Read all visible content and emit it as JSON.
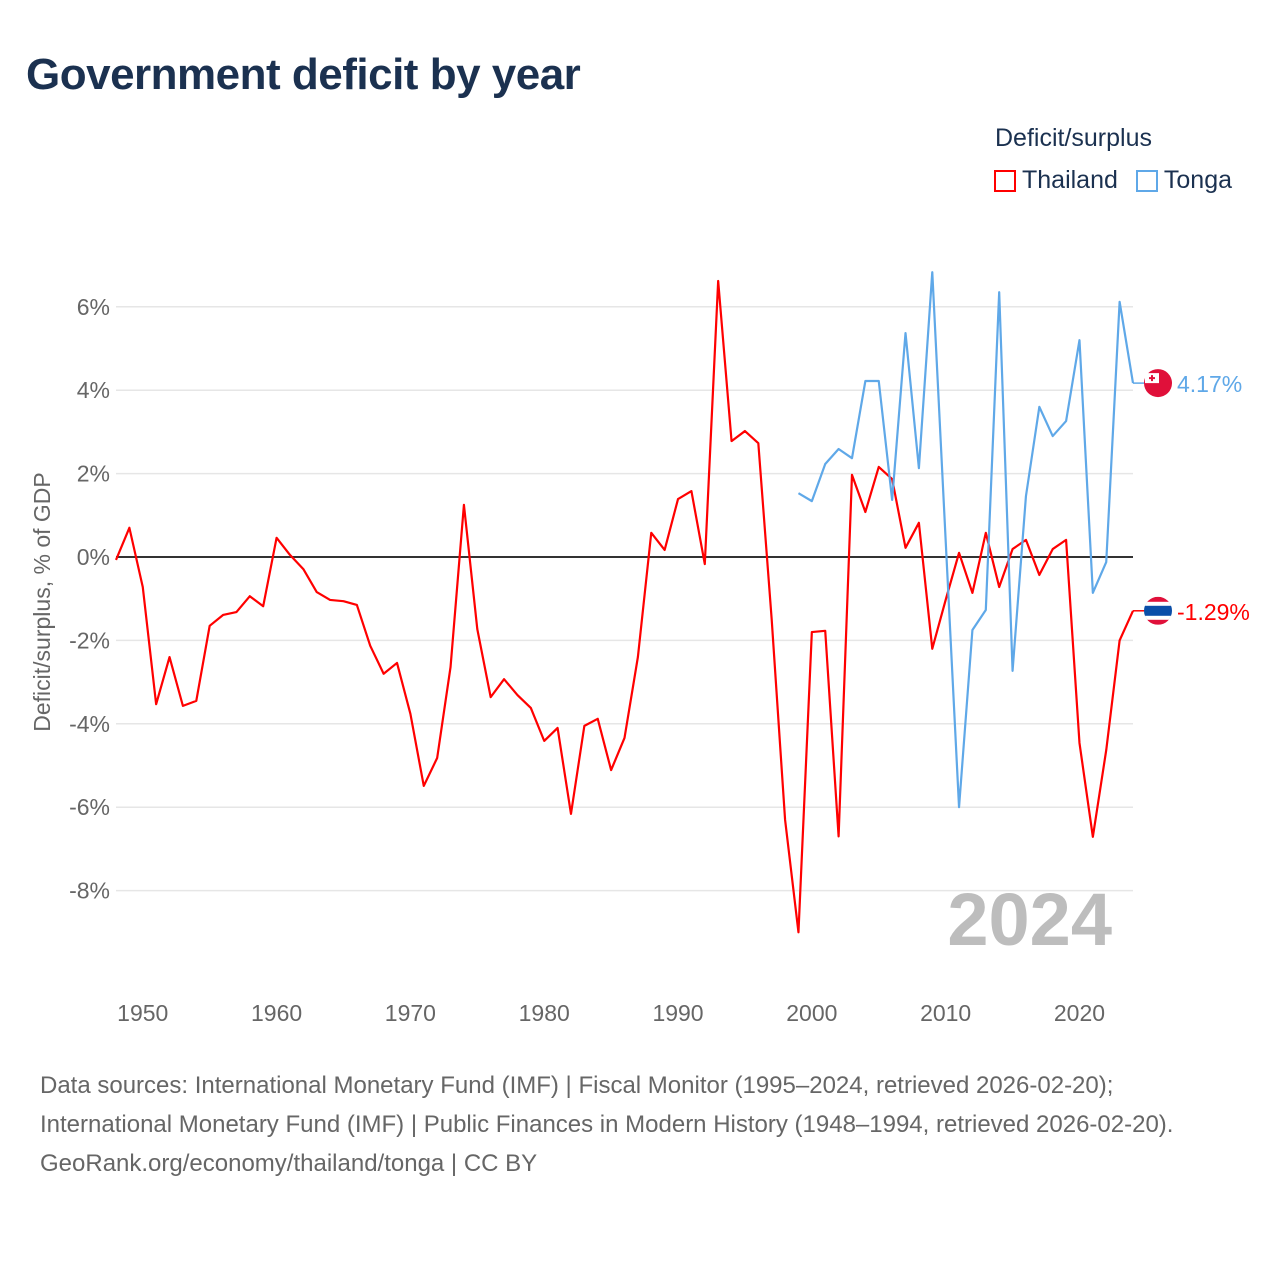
{
  "title": "Government deficit by year",
  "legend": {
    "title": "Deficit/surplus",
    "items": [
      {
        "label": "Thailand",
        "color": "#ff0000"
      },
      {
        "label": "Tonga",
        "color": "#5fa8e8"
      }
    ]
  },
  "footer": {
    "sources": "Data sources: International Monetary Fund (IMF) | Fiscal Monitor (1995–2024, retrieved 2026-02-20); International Monetary Fund (IMF) | Public Finances in Modern History (1948–1994, retrieved 2026-02-20).",
    "credit": "GeoRank.org/economy/thailand/tonga | CC BY"
  },
  "chart_data": {
    "type": "line",
    "title": "Government deficit by year",
    "xlabel": "",
    "ylabel": "Deficit/surplus, % of GDP",
    "xlim": [
      1948,
      2024
    ],
    "ylim": [
      -10,
      7
    ],
    "x_ticks": [
      1950,
      1960,
      1970,
      1980,
      1990,
      2000,
      2010,
      2020
    ],
    "y_ticks": [
      {
        "v": 6,
        "label": "6%"
      },
      {
        "v": 4,
        "label": "4%"
      },
      {
        "v": 2,
        "label": "2%"
      },
      {
        "v": 0,
        "label": "0%"
      },
      {
        "v": -2,
        "label": "-2%"
      },
      {
        "v": -4,
        "label": "-4%"
      },
      {
        "v": -6,
        "label": "-6%"
      },
      {
        "v": -8,
        "label": "-8%"
      }
    ],
    "grid": true,
    "legend_position": "top-right",
    "watermark_year": "2024",
    "series": [
      {
        "name": "Thailand",
        "color": "#ff0000",
        "end_label": "-1.29%",
        "start_year": 1948,
        "values": [
          -0.07,
          0.7,
          -0.72,
          -3.53,
          -2.4,
          -3.57,
          -3.45,
          -1.65,
          -1.39,
          -1.32,
          -0.94,
          -1.18,
          0.46,
          0.05,
          -0.29,
          -0.84,
          -1.03,
          -1.06,
          -1.15,
          -2.13,
          -2.8,
          -2.54,
          -3.76,
          -5.49,
          -4.82,
          -2.64,
          1.25,
          -1.73,
          -3.36,
          -2.93,
          -3.31,
          -3.62,
          -4.41,
          -4.1,
          -6.16,
          -4.05,
          -3.88,
          -5.11,
          -4.34,
          -2.4,
          0.58,
          0.17,
          1.39,
          1.58,
          -0.17,
          6.62,
          2.78,
          3.02,
          2.73,
          -1.5,
          -6.3,
          -9.0,
          -1.8,
          -1.77,
          -6.7,
          1.97,
          1.08,
          2.16,
          1.87,
          0.22,
          0.82,
          -2.2,
          -1.03,
          0.1,
          -0.86,
          0.58,
          -0.72,
          0.19,
          0.41,
          -0.43,
          0.19,
          0.41,
          -4.46,
          -6.71,
          -4.63,
          -2.0,
          -1.29
        ]
      },
      {
        "name": "Tonga",
        "color": "#5fa8e8",
        "end_label": "4.17%",
        "start_year": 1999,
        "values": [
          1.53,
          1.34,
          2.23,
          2.59,
          2.37,
          4.22,
          4.22,
          1.37,
          5.37,
          2.13,
          6.83,
          0.4,
          -6.0,
          -1.75,
          -1.27,
          6.35,
          -2.73,
          1.46,
          3.6,
          2.9,
          3.26,
          5.2,
          -0.86,
          -0.12,
          6.12,
          4.17
        ]
      }
    ]
  }
}
